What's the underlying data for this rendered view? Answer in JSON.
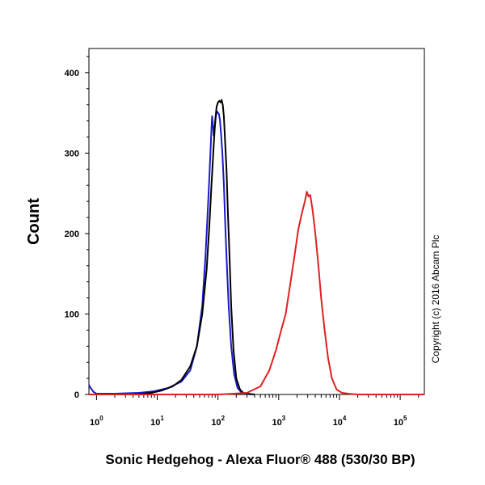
{
  "chart_data": {
    "type": "line",
    "xlabel": "Sonic Hedgehog - Alexa Fluor® 488 (530/30 BP)",
    "ylabel": "Count",
    "x_scale": "log",
    "xlim": [
      0.75,
      250000
    ],
    "ylim": [
      0,
      430
    ],
    "x_ticks": [
      {
        "value": 1,
        "base": "10",
        "exp": "0"
      },
      {
        "value": 10,
        "base": "10",
        "exp": "1"
      },
      {
        "value": 100,
        "base": "10",
        "exp": "2"
      },
      {
        "value": 1000,
        "base": "10",
        "exp": "3"
      },
      {
        "value": 10000,
        "base": "10",
        "exp": "4"
      },
      {
        "value": 100000,
        "base": "10",
        "exp": "5"
      }
    ],
    "y_ticks": [
      0,
      100,
      200,
      300,
      400
    ],
    "grid": false,
    "series": [
      {
        "color": "#1a1acc",
        "x": [
          0.75,
          0.8,
          0.9,
          1.0,
          2,
          5,
          9,
          15,
          25,
          35,
          45,
          55,
          62,
          68,
          72,
          75,
          78,
          80,
          82,
          85,
          88,
          92,
          96,
          100,
          104,
          108,
          112,
          118,
          125,
          132,
          140,
          150,
          165,
          185,
          210,
          240,
          280,
          350
        ],
        "y": [
          12,
          8,
          3,
          1,
          1,
          2,
          4,
          8,
          16,
          30,
          60,
          110,
          170,
          230,
          270,
          300,
          330,
          346,
          338,
          322,
          330,
          345,
          352,
          350,
          348,
          340,
          325,
          300,
          260,
          210,
          160,
          110,
          60,
          25,
          8,
          3,
          1,
          0
        ]
      },
      {
        "color": "#000000",
        "x": [
          0.75,
          4,
          8,
          12,
          18,
          25,
          35,
          45,
          55,
          65,
          72,
          78,
          85,
          90,
          95,
          100,
          105,
          110,
          115,
          120,
          125,
          130,
          138,
          145,
          155,
          165,
          180,
          200,
          230,
          260,
          300,
          400
        ],
        "y": [
          0,
          0,
          2,
          5,
          10,
          18,
          35,
          60,
          100,
          155,
          210,
          260,
          310,
          340,
          358,
          363,
          365,
          363,
          366,
          360,
          345,
          320,
          280,
          230,
          170,
          110,
          55,
          20,
          6,
          2,
          1,
          0
        ]
      },
      {
        "color": "#e02020",
        "x": [
          0.75,
          100,
          180,
          300,
          500,
          700,
          900,
          1100,
          1300,
          1500,
          1800,
          2100,
          2400,
          2700,
          2900,
          3100,
          3300,
          3600,
          4000,
          4500,
          5000,
          5700,
          6500,
          7500,
          9000,
          11000,
          14000,
          20000,
          250000
        ],
        "y": [
          0,
          0,
          1,
          2,
          10,
          30,
          55,
          80,
          100,
          130,
          170,
          205,
          225,
          240,
          252,
          246,
          248,
          230,
          200,
          160,
          120,
          80,
          45,
          20,
          6,
          2,
          1,
          0,
          0
        ]
      }
    ],
    "annotations": [
      "Copyright (c) 2016 Abcam Plc"
    ]
  }
}
